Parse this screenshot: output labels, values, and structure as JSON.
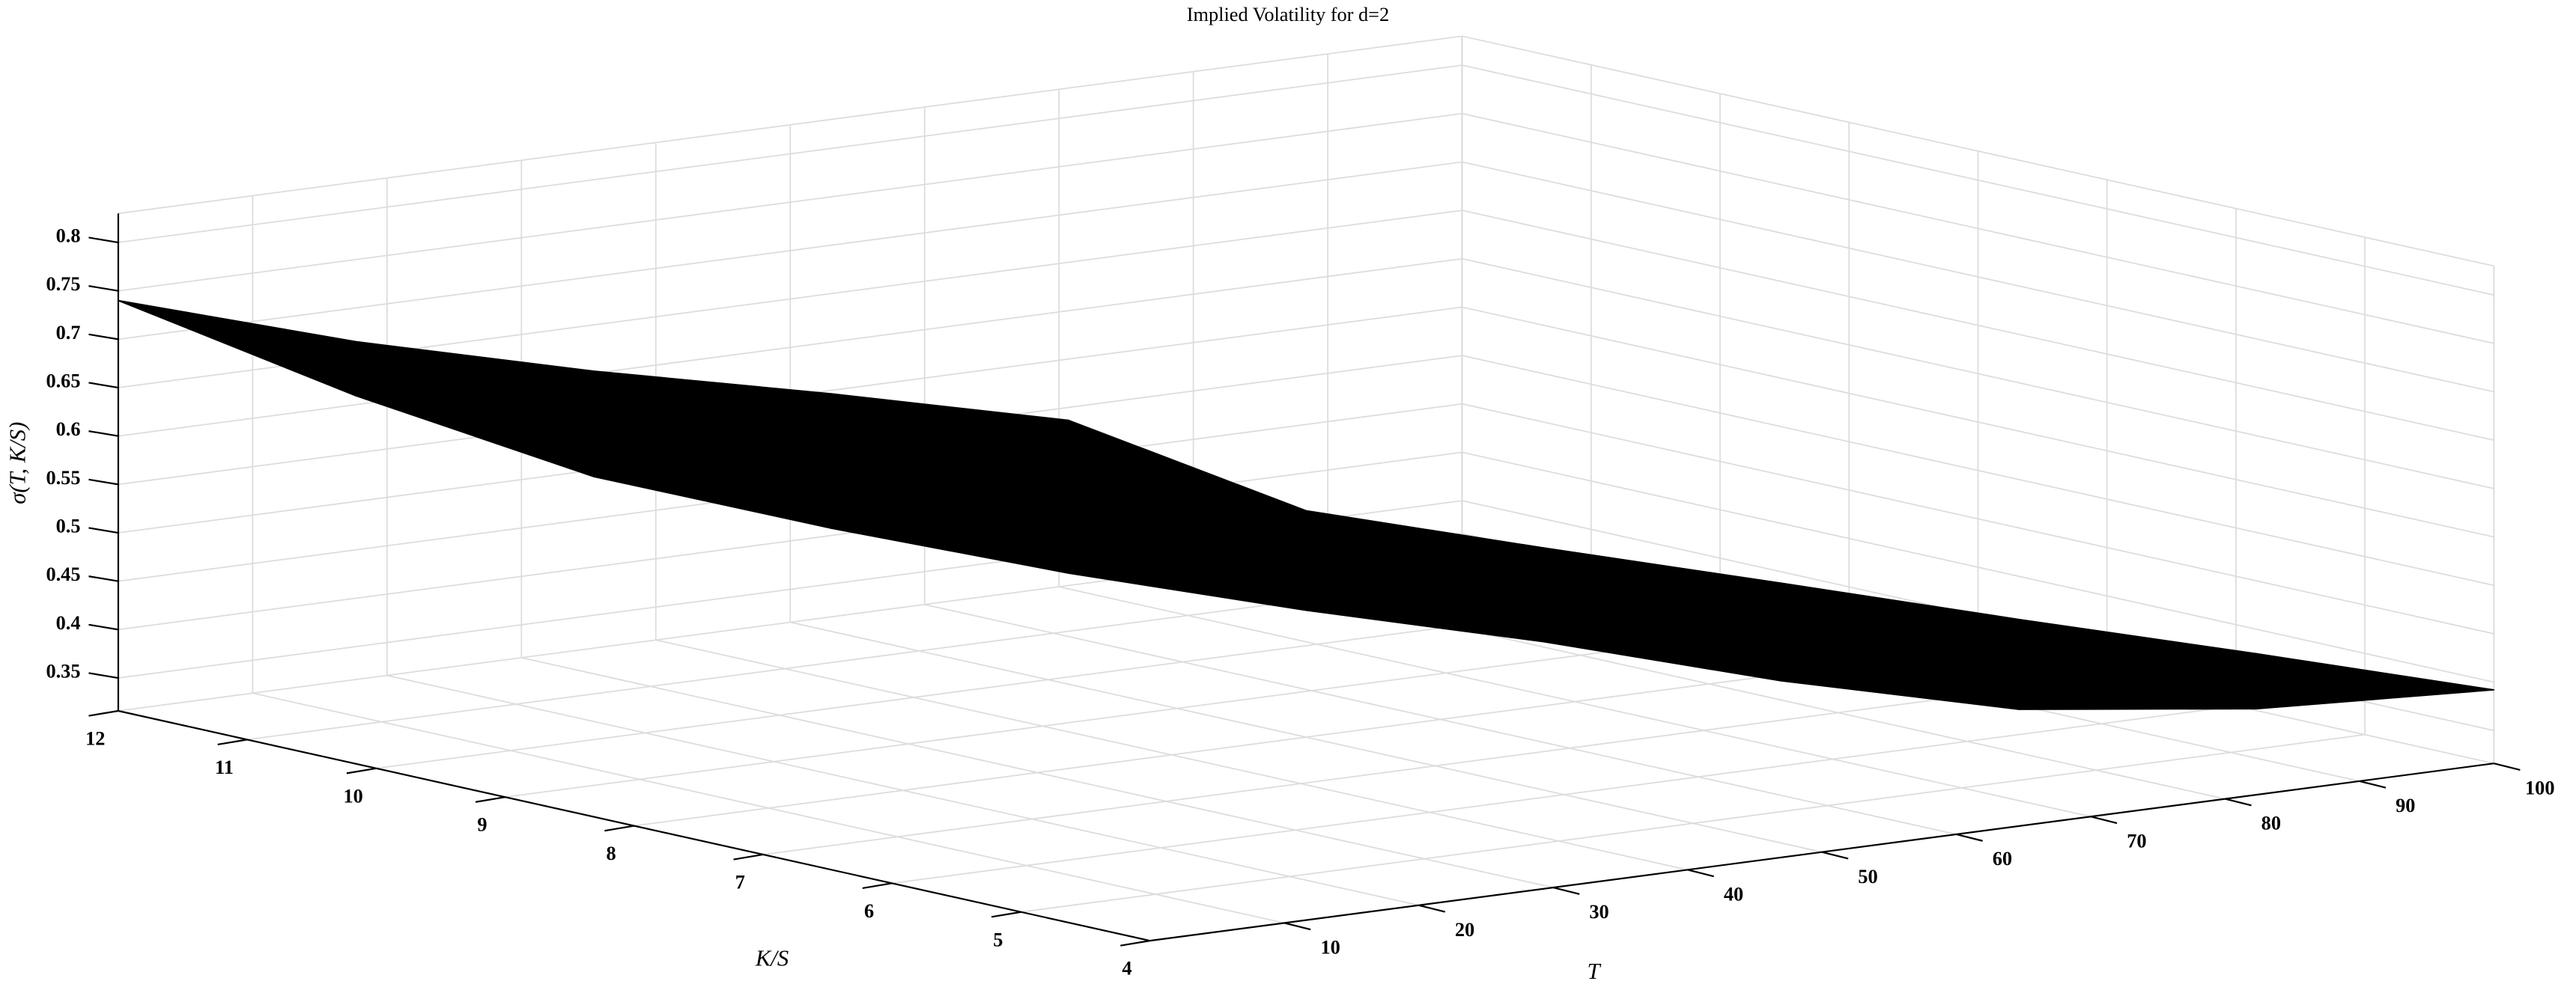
{
  "chart_data": {
    "type": "surface",
    "title": "Implied Volatility for d=2",
    "xlabel": "T",
    "ylabel": "K/S",
    "zlabel": "σ(T, K/S)",
    "x": [
      0,
      10,
      20,
      30,
      40,
      50,
      60,
      70,
      80,
      90,
      100
    ],
    "y": [
      12,
      11.2,
      10.4,
      9.6,
      8.8,
      8,
      7.2,
      6.4,
      5.6,
      4.8,
      4
    ],
    "z": [
      [
        0.74,
        0.703,
        0.678,
        0.66,
        0.638,
        0.55,
        0.517,
        0.486,
        0.454,
        0.424,
        0.392
      ],
      [
        0.74,
        0.647,
        0.569,
        0.521,
        0.48,
        0.447,
        0.42,
        0.385,
        0.361,
        0.367,
        0.392
      ]
    ],
    "color": "#000000",
    "xlim": [
      0,
      100
    ],
    "ylim": [
      4,
      12
    ],
    "zlim": [
      0.316,
      0.83
    ],
    "xticks": [
      10,
      20,
      30,
      40,
      50,
      60,
      70,
      80,
      90,
      100
    ],
    "yticks": [
      4,
      5,
      6,
      7,
      8,
      9,
      10,
      11,
      12
    ],
    "zticks": [
      0.35,
      0.4,
      0.45,
      0.5,
      0.55,
      0.6,
      0.65,
      0.7,
      0.75,
      0.8
    ],
    "grid": true
  }
}
